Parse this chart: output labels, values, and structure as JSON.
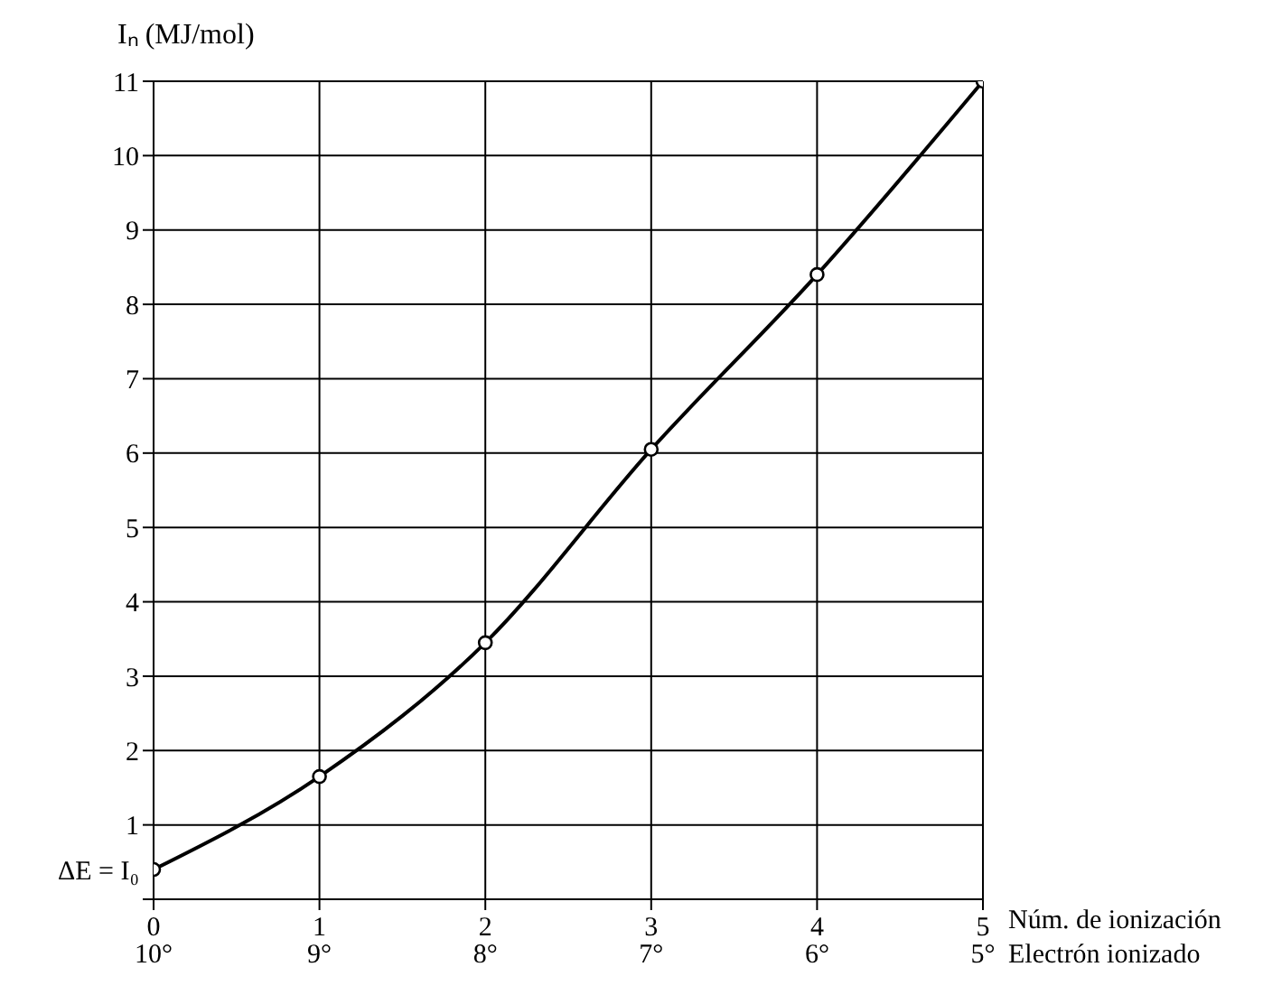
{
  "chart_data": {
    "type": "line",
    "ylabel": "Iₙ (MJ/mol)",
    "xlabel": "Núm. de ionización",
    "x2label": "Electrón ionizado",
    "annotations": [
      {
        "text": "ΔE = I₀",
        "x": 0,
        "y": 0.4
      }
    ],
    "x": [
      0,
      1,
      2,
      3,
      4,
      5
    ],
    "series": [
      {
        "color": "#000000",
        "values": [
          0.4,
          1.65,
          3.45,
          6.05,
          8.4,
          11
        ]
      }
    ],
    "xlim": [
      0,
      5
    ],
    "ylim": [
      0,
      11
    ],
    "xticks": [
      0,
      1,
      2,
      3,
      4,
      5
    ],
    "x2lim": [
      10,
      5
    ],
    "x2ticks": [
      {
        "value": 10,
        "label": "10°"
      },
      {
        "value": 9,
        "label": "9°"
      },
      {
        "value": 8,
        "label": "8°"
      },
      {
        "value": 7,
        "label": "7°"
      },
      {
        "value": 6,
        "label": "6°"
      },
      {
        "value": 5,
        "label": "5°"
      }
    ],
    "yticks": [
      {
        "value": 0,
        "label": null
      },
      1,
      2,
      3,
      4,
      5,
      6,
      7,
      8,
      9,
      10,
      11
    ],
    "grid": true,
    "marker": "circle",
    "line_style": "solid"
  }
}
